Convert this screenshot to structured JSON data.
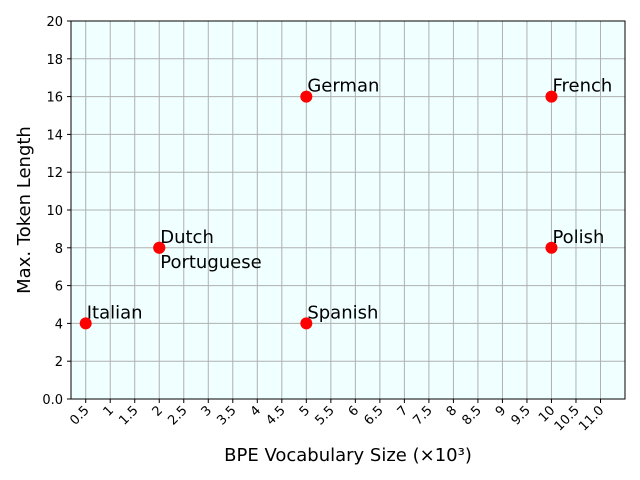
{
  "chart_data": {
    "type": "scatter",
    "x_label": "BPE Vocabulary Size (×10³)",
    "y_label": "Max. Token Length",
    "x": [
      0.5,
      2,
      2,
      5,
      5,
      10,
      10
    ],
    "y": [
      4,
      8,
      8,
      16,
      4,
      16,
      8
    ],
    "labels": [
      "Italian",
      "Dutch",
      "Portuguese",
      "German",
      "Spanish",
      "French",
      "Polish"
    ],
    "color": "#ff0000",
    "background": "#f0ffff",
    "grid": true,
    "xlim": [
      0.2,
      11.5
    ],
    "xticks": [
      0.5,
      1,
      1.5,
      2,
      2.5,
      3,
      3.5,
      4,
      4.5,
      5,
      5.5,
      6,
      6.5,
      7,
      7.5,
      8,
      8.5,
      9,
      9.5,
      10,
      10.5,
      {
        "value": 11,
        "label": "11.0"
      }
    ],
    "ylim": [
      0,
      20
    ],
    "yticks": [
      {
        "value": 0,
        "label": "0.0"
      },
      2,
      4,
      6,
      8,
      10,
      12,
      14,
      16,
      18,
      20
    ]
  }
}
